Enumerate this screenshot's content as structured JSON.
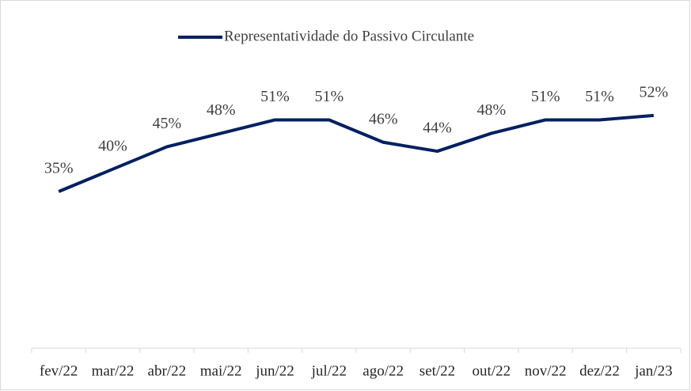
{
  "chart_data": {
    "type": "line",
    "categories": [
      "fev/22",
      "mar/22",
      "abr/22",
      "mai/22",
      "jun/22",
      "jul/22",
      "ago/22",
      "set/22",
      "out/22",
      "nov/22",
      "dez/22",
      "jan/23"
    ],
    "series": [
      {
        "name": "Representatividade do Passivo Circulante",
        "color": "#002060",
        "values": [
          35,
          40,
          45,
          48,
          51,
          51,
          46,
          44,
          48,
          51,
          51,
          52
        ],
        "value_labels": [
          "35%",
          "40%",
          "45%",
          "48%",
          "51%",
          "51%",
          "46%",
          "44%",
          "48%",
          "51%",
          "51%",
          "52%"
        ]
      }
    ],
    "ylim": [
      0,
      70
    ],
    "legend": "top"
  }
}
